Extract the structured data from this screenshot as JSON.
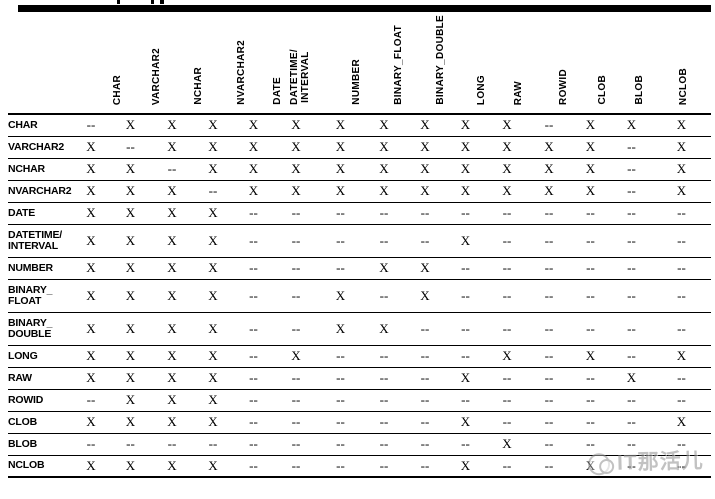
{
  "colors": {
    "line": "#000000",
    "watermark_gray": "#9a9a9a",
    "background": "#ffffff"
  },
  "watermark": {
    "text": "IT那活儿",
    "logo": "double-circle-mascot-icon"
  },
  "matrix": {
    "cell_symbols": {
      "allowed": "X",
      "not_allowed": "--"
    },
    "columns": [
      "CHAR",
      "VARCHAR2",
      "NCHAR",
      "NVARCHAR2",
      "DATE",
      "DATETIME/\nINTERVAL",
      "NUMBER",
      "BINARY_FLOAT",
      "BINARY_DOUBLE",
      "LONG",
      "RAW",
      "ROWID",
      "CLOB",
      "BLOB",
      "NCLOB"
    ],
    "rows": [
      {
        "label": "CHAR",
        "cells": [
          "--",
          "X",
          "X",
          "X",
          "X",
          "X",
          "X",
          "X",
          "X",
          "X",
          "X",
          "--",
          "X",
          "X",
          "X"
        ]
      },
      {
        "label": "VARCHAR2",
        "cells": [
          "X",
          "--",
          "X",
          "X",
          "X",
          "X",
          "X",
          "X",
          "X",
          "X",
          "X",
          "X",
          "X",
          "--",
          "X"
        ]
      },
      {
        "label": "NCHAR",
        "cells": [
          "X",
          "X",
          "--",
          "X",
          "X",
          "X",
          "X",
          "X",
          "X",
          "X",
          "X",
          "X",
          "X",
          "--",
          "X"
        ]
      },
      {
        "label": "NVARCHAR2",
        "cells": [
          "X",
          "X",
          "X",
          "--",
          "X",
          "X",
          "X",
          "X",
          "X",
          "X",
          "X",
          "X",
          "X",
          "--",
          "X"
        ]
      },
      {
        "label": "DATE",
        "cells": [
          "X",
          "X",
          "X",
          "X",
          "--",
          "--",
          "--",
          "--",
          "--",
          "--",
          "--",
          "--",
          "--",
          "--",
          "--"
        ]
      },
      {
        "label": "DATETIME/\nINTERVAL",
        "cells": [
          "X",
          "X",
          "X",
          "X",
          "--",
          "--",
          "--",
          "--",
          "--",
          "X",
          "--",
          "--",
          "--",
          "--",
          "--"
        ]
      },
      {
        "label": "NUMBER",
        "cells": [
          "X",
          "X",
          "X",
          "X",
          "--",
          "--",
          "--",
          "X",
          "X",
          "--",
          "--",
          "--",
          "--",
          "--",
          "--"
        ]
      },
      {
        "label": "BINARY_\nFLOAT",
        "cells": [
          "X",
          "X",
          "X",
          "X",
          "--",
          "--",
          "X",
          "--",
          "X",
          "--",
          "--",
          "--",
          "--",
          "--",
          "--"
        ]
      },
      {
        "label": "BINARY_\nDOUBLE",
        "cells": [
          "X",
          "X",
          "X",
          "X",
          "--",
          "--",
          "X",
          "X",
          "--",
          "--",
          "--",
          "--",
          "--",
          "--",
          "--"
        ]
      },
      {
        "label": "LONG",
        "cells": [
          "X",
          "X",
          "X",
          "X",
          "--",
          "X",
          "--",
          "--",
          "--",
          "--",
          "X",
          "--",
          "X",
          "--",
          "X"
        ]
      },
      {
        "label": "RAW",
        "cells": [
          "X",
          "X",
          "X",
          "X",
          "--",
          "--",
          "--",
          "--",
          "--",
          "X",
          "--",
          "--",
          "--",
          "X",
          "--"
        ]
      },
      {
        "label": "ROWID",
        "cells": [
          "--",
          "X",
          "X",
          "X",
          "--",
          "--",
          "--",
          "--",
          "--",
          "--",
          "--",
          "--",
          "--",
          "--",
          "--"
        ]
      },
      {
        "label": "CLOB",
        "cells": [
          "X",
          "X",
          "X",
          "X",
          "--",
          "--",
          "--",
          "--",
          "--",
          "X",
          "--",
          "--",
          "--",
          "--",
          "X"
        ]
      },
      {
        "label": "BLOB",
        "cells": [
          "--",
          "--",
          "--",
          "--",
          "--",
          "--",
          "--",
          "--",
          "--",
          "--",
          "X",
          "--",
          "--",
          "--",
          "--"
        ]
      },
      {
        "label": "NCLOB",
        "cells": [
          "X",
          "X",
          "X",
          "X",
          "--",
          "--",
          "--",
          "--",
          "--",
          "X",
          "--",
          "--",
          "X",
          "--",
          "--"
        ]
      }
    ]
  }
}
